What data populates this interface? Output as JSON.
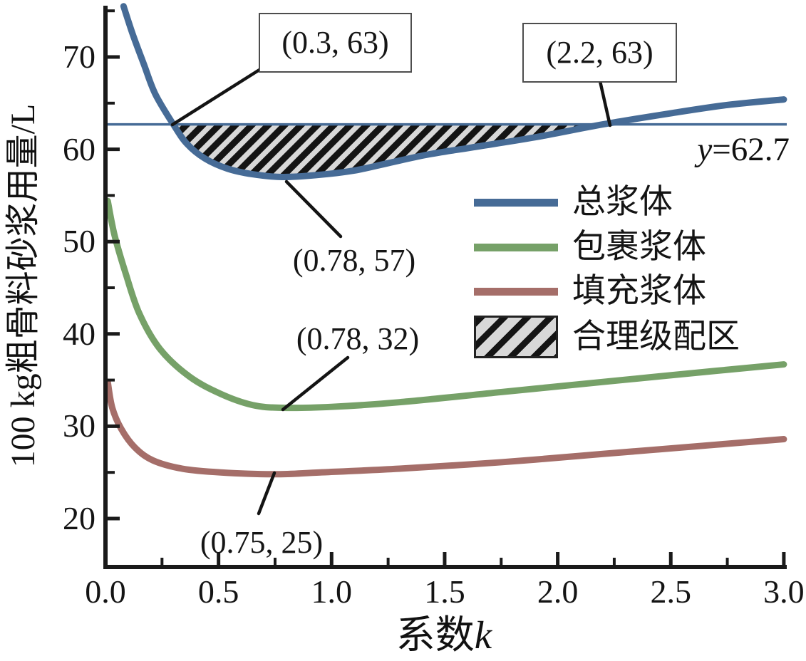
{
  "axis_titles": {
    "x_prefix": "系数",
    "x_var": "k",
    "y": "100 kg粗骨料砂浆用量/L"
  },
  "chart_data": {
    "type": "line",
    "title": "",
    "xlabel": "系数k",
    "ylabel": "100 kg粗骨料砂浆用量/L",
    "xlim": [
      0.0,
      3.0
    ],
    "ylim": [
      15,
      75.5
    ],
    "x_ticks": [
      0.0,
      0.5,
      1.0,
      1.5,
      2.0,
      2.5,
      3.0
    ],
    "x_tick_labels": [
      "0.0",
      "0.5",
      "1.0",
      "1.5",
      "2.0",
      "2.5",
      "3.0"
    ],
    "x_minor_ticks": [
      0.25,
      0.75,
      1.25,
      1.75,
      2.25,
      2.75
    ],
    "y_ticks": [
      20,
      30,
      40,
      50,
      60,
      70
    ],
    "y_tick_labels": [
      "20",
      "30",
      "40",
      "50",
      "60",
      "70"
    ],
    "y_minor_ticks": [
      25,
      35,
      45,
      55,
      65,
      75
    ],
    "grid": false,
    "legend_position": "inside-center-right",
    "reference_line": {
      "y": 62.7,
      "label": "y=62.7",
      "label_var": "y",
      "label_rest": "=62.7",
      "color": "#466b96"
    },
    "series": [
      {
        "name": "总浆体",
        "color": "#466b96",
        "minimum": [
          0.78,
          57
        ],
        "points": [
          [
            0.08,
            75.5
          ],
          [
            0.12,
            72.5
          ],
          [
            0.17,
            69.2
          ],
          [
            0.22,
            66.0
          ],
          [
            0.3,
            62.7
          ],
          [
            0.36,
            60.6
          ],
          [
            0.44,
            59.0
          ],
          [
            0.54,
            57.9
          ],
          [
            0.65,
            57.3
          ],
          [
            0.78,
            57.0
          ],
          [
            0.93,
            57.2
          ],
          [
            1.1,
            57.7
          ],
          [
            1.25,
            58.5
          ],
          [
            1.42,
            59.4
          ],
          [
            1.62,
            60.2
          ],
          [
            1.9,
            61.3
          ],
          [
            2.2,
            62.7
          ],
          [
            2.5,
            63.9
          ],
          [
            2.75,
            64.8
          ],
          [
            3.0,
            65.4
          ]
        ]
      },
      {
        "name": "包裹浆体",
        "color": "#76a168",
        "minimum": [
          0.78,
          32
        ],
        "points": [
          [
            0.01,
            54.4
          ],
          [
            0.04,
            50.7
          ],
          [
            0.09,
            46.5
          ],
          [
            0.15,
            42.2
          ],
          [
            0.24,
            38.4
          ],
          [
            0.37,
            35.4
          ],
          [
            0.51,
            33.5
          ],
          [
            0.65,
            32.3
          ],
          [
            0.78,
            32.0
          ],
          [
            1.0,
            32.1
          ],
          [
            1.3,
            32.6
          ],
          [
            1.75,
            33.7
          ],
          [
            2.2,
            34.8
          ],
          [
            2.7,
            36.0
          ],
          [
            3.0,
            36.7
          ]
        ]
      },
      {
        "name": "填充浆体",
        "color": "#a56e69",
        "minimum": [
          0.75,
          25
        ],
        "points": [
          [
            0.01,
            34.8
          ],
          [
            0.03,
            32.0
          ],
          [
            0.07,
            29.7
          ],
          [
            0.13,
            27.7
          ],
          [
            0.21,
            26.3
          ],
          [
            0.34,
            25.4
          ],
          [
            0.51,
            25.0
          ],
          [
            0.75,
            24.8
          ],
          [
            0.95,
            25.0
          ],
          [
            1.3,
            25.4
          ],
          [
            1.75,
            26.1
          ],
          [
            2.2,
            27.0
          ],
          [
            2.7,
            28.0
          ],
          [
            3.0,
            28.6
          ]
        ]
      }
    ],
    "shaded_region": {
      "label": "合理级配区",
      "bounded_by": "总浆体 curve and y=62.7 line",
      "x_range": [
        0.3,
        2.2
      ],
      "fill": "#d8d8d8",
      "hatch": "black-diagonal"
    },
    "annotations": [
      {
        "text": "(0.3, 63)",
        "boxed": true,
        "point": [
          0.3,
          63
        ]
      },
      {
        "text": "(2.2, 63)",
        "boxed": true,
        "point": [
          2.2,
          63
        ]
      },
      {
        "text": "(0.78, 57)",
        "boxed": false,
        "point": [
          0.78,
          57
        ]
      },
      {
        "text": "(0.78, 32)",
        "boxed": false,
        "point": [
          0.78,
          32
        ]
      },
      {
        "text": "(0.75, 25)",
        "boxed": false,
        "point": [
          0.75,
          25
        ]
      }
    ],
    "legend": [
      {
        "label": "总浆体",
        "swatch": "line",
        "color": "#466b96"
      },
      {
        "label": "包裹浆体",
        "swatch": "line",
        "color": "#76a168"
      },
      {
        "label": "填充浆体",
        "swatch": "line",
        "color": "#a56e69"
      },
      {
        "label": "合理级配区",
        "swatch": "hatch",
        "color": "#d8d8d8"
      }
    ]
  }
}
